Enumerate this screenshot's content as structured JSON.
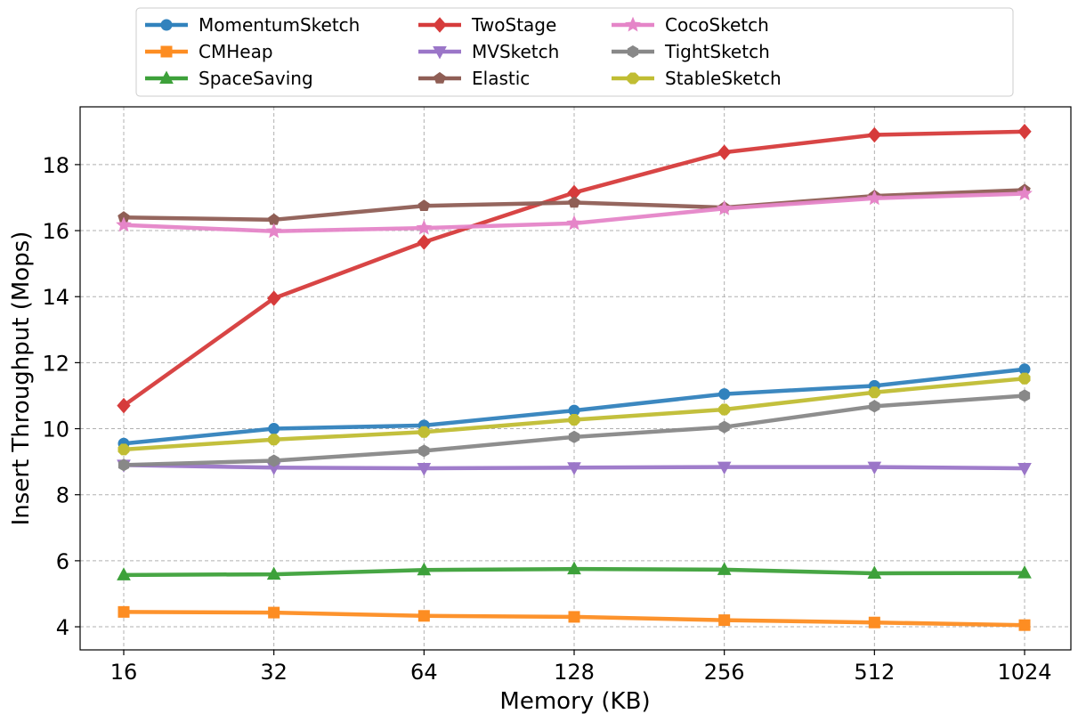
{
  "chart_data": {
    "type": "line",
    "xlabel": "Memory (KB)",
    "ylabel": "Insert Throughput (Mops)",
    "categories": [
      "16",
      "32",
      "64",
      "128",
      "256",
      "512",
      "1024"
    ],
    "x_scale": "log2",
    "ylim": [
      3.3,
      19.75
    ],
    "yticks": [
      4,
      6,
      8,
      10,
      12,
      14,
      16,
      18
    ],
    "grid": true,
    "legend_position": "top-center, above plot, 4 columns",
    "series": [
      {
        "name": "MomentumSketch",
        "color": "#3182bd",
        "marker": "circle",
        "values": [
          9.55,
          10.0,
          10.1,
          10.55,
          11.05,
          11.3,
          11.8
        ]
      },
      {
        "name": "CMHeap",
        "color": "#fd8d22",
        "marker": "square",
        "values": [
          4.45,
          4.43,
          4.33,
          4.3,
          4.2,
          4.13,
          4.05
        ]
      },
      {
        "name": "SpaceSaving",
        "color": "#3da13a",
        "marker": "triangle-up",
        "values": [
          5.57,
          5.59,
          5.72,
          5.75,
          5.73,
          5.62,
          5.63
        ]
      },
      {
        "name": "TwoStage",
        "color": "#d63b3b",
        "marker": "diamond",
        "values": [
          10.7,
          13.95,
          15.65,
          17.15,
          18.37,
          18.9,
          19.0
        ]
      },
      {
        "name": "MVSketch",
        "color": "#9b76c8",
        "marker": "triangle-down",
        "values": [
          8.9,
          8.82,
          8.8,
          8.82,
          8.84,
          8.84,
          8.8
        ]
      },
      {
        "name": "Elastic",
        "color": "#8f5e55",
        "marker": "pentagon",
        "values": [
          16.4,
          16.33,
          16.75,
          16.85,
          16.7,
          17.05,
          17.23
        ]
      },
      {
        "name": "CocoSketch",
        "color": "#e585c8",
        "marker": "star",
        "values": [
          16.17,
          15.98,
          16.08,
          16.22,
          16.67,
          16.98,
          17.12
        ]
      },
      {
        "name": "TightSketch",
        "color": "#888888",
        "marker": "hexagon",
        "values": [
          8.9,
          9.03,
          9.33,
          9.75,
          10.05,
          10.68,
          11.0
        ]
      },
      {
        "name": "StableSketch",
        "color": "#c0bd33",
        "marker": "octagon",
        "values": [
          9.37,
          9.67,
          9.9,
          10.27,
          10.58,
          11.1,
          11.52
        ]
      }
    ]
  }
}
